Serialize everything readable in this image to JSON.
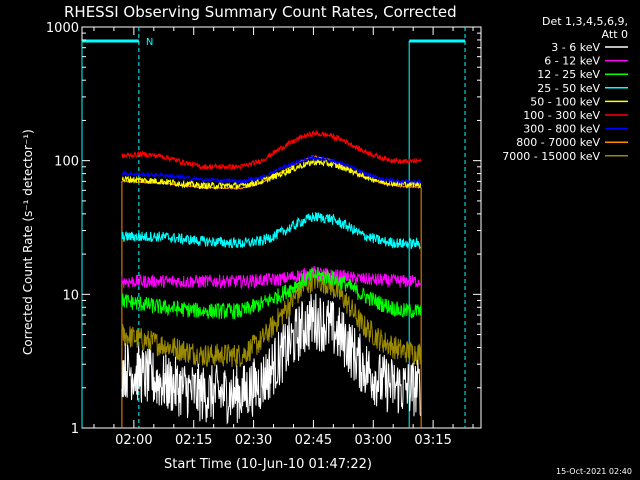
{
  "chart_data": {
    "type": "line",
    "title": "RHESSI Observing Summary Count Rates, Corrected",
    "xlabel": "Start Time (10-Jun-10 01:47:22)",
    "ylabel": "Corrected Count Rate (s⁻¹ detector⁻¹)",
    "yscale": "log",
    "ylim": [
      1,
      1000
    ],
    "xlim_minutes_since_0147": [
      0,
      100
    ],
    "x_tick_labels": [
      "02:00",
      "02:15",
      "02:30",
      "02:45",
      "03:00",
      "03:15"
    ],
    "x_tick_minutes": [
      13,
      28,
      43,
      58,
      73,
      88
    ],
    "y_tick_labels": [
      "1",
      "10",
      "100",
      "1000"
    ],
    "y_tick_values": [
      1,
      10,
      100,
      1000
    ],
    "legend_title_lines": [
      "Det 1,3,4,5,6,9,",
      "Att 0"
    ],
    "legend_position": "top-right outside plot",
    "timestamp": "15-Oct-2021 02:40",
    "attenuator_marker_label": "N",
    "data_window_minutes": [
      10,
      85
    ],
    "night_intervals_minutes": [
      [
        0,
        15
      ],
      [
        82,
        96
      ]
    ],
    "series": [
      {
        "name": "3 - 6 keV",
        "color": "#ffffff",
        "x": [
          10,
          20,
          30,
          40,
          45,
          50,
          55,
          58,
          62,
          66,
          70,
          75,
          80,
          85
        ],
        "y": [
          2.8,
          2.2,
          1.8,
          1.8,
          2.2,
          3.5,
          5.5,
          6.5,
          5.8,
          4.5,
          3,
          2.2,
          2,
          2
        ]
      },
      {
        "name": "6 - 12 keV",
        "color": "#ff00ff",
        "x": [
          10,
          20,
          30,
          40,
          50,
          55,
          58,
          62,
          66,
          70,
          80,
          85
        ],
        "y": [
          12.5,
          12.5,
          12.5,
          12.5,
          13,
          14,
          14.5,
          14,
          13.5,
          13,
          12.5,
          12.5
        ]
      },
      {
        "name": "12 - 25 keV",
        "color": "#00ff00",
        "x": [
          10,
          20,
          30,
          40,
          45,
          50,
          55,
          58,
          62,
          66,
          70,
          75,
          80,
          85
        ],
        "y": [
          9,
          8,
          7.5,
          7.5,
          8.5,
          10,
          12.5,
          14,
          13.5,
          12,
          10,
          8.5,
          7.5,
          7.5
        ]
      },
      {
        "name": "25 - 50 keV",
        "color": "#00ffff",
        "x": [
          10,
          20,
          30,
          40,
          45,
          50,
          55,
          58,
          62,
          66,
          70,
          75,
          80,
          85
        ],
        "y": [
          27,
          27,
          25,
          24,
          25,
          29,
          35,
          38,
          37,
          33,
          28,
          25,
          24,
          24
        ]
      },
      {
        "name": "50 - 100 keV",
        "color": "#ffff00",
        "x": [
          10,
          20,
          30,
          40,
          45,
          50,
          55,
          58,
          62,
          66,
          70,
          75,
          80,
          85
        ],
        "y": [
          73,
          70,
          65,
          65,
          70,
          80,
          92,
          98,
          95,
          88,
          78,
          70,
          67,
          67
        ]
      },
      {
        "name": "100 - 300 keV",
        "color": "#ff0000",
        "x": [
          10,
          15,
          20,
          25,
          30,
          40,
          45,
          50,
          55,
          58,
          62,
          66,
          70,
          75,
          80,
          85
        ],
        "y": [
          108,
          112,
          108,
          98,
          90,
          90,
          100,
          125,
          150,
          160,
          155,
          140,
          120,
          105,
          98,
          100
        ]
      },
      {
        "name": "300 - 800 keV",
        "color": "#0000ff",
        "x": [
          10,
          20,
          30,
          40,
          45,
          50,
          55,
          58,
          62,
          66,
          70,
          75,
          80,
          85
        ],
        "y": [
          80,
          78,
          72,
          70,
          75,
          88,
          100,
          105,
          102,
          93,
          82,
          73,
          70,
          70
        ]
      },
      {
        "name": "800 - 7000 keV",
        "color": "#ff8c00",
        "x": [
          10,
          20,
          30,
          40,
          45,
          50,
          55,
          58,
          62,
          66,
          70,
          75,
          80,
          85
        ],
        "y": [
          70,
          68,
          63,
          62,
          68,
          82,
          100,
          108,
          102,
          90,
          77,
          68,
          64,
          63
        ]
      },
      {
        "name": "7000 - 15000 keV",
        "color": "#9b8a00",
        "x": [
          10,
          20,
          30,
          40,
          45,
          50,
          55,
          58,
          62,
          66,
          70,
          75,
          80,
          85
        ],
        "y": [
          5,
          4.2,
          3.5,
          3.5,
          4.5,
          7,
          11,
          13,
          12,
          9,
          6,
          4.5,
          3.8,
          3.6
        ]
      }
    ]
  }
}
